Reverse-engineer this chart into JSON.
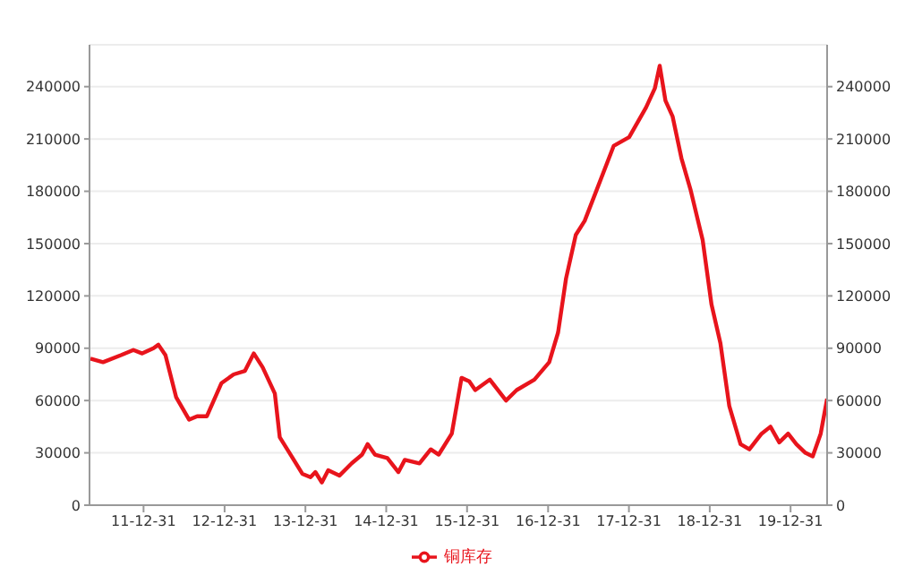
{
  "chart_data": {
    "type": "line",
    "x": [
      "2011-05-05",
      "2011-07-01",
      "2011-09-20",
      "2011-11-15",
      "2011-12-25",
      "2012-02-14",
      "2012-03-07",
      "2012-04-08",
      "2012-05-26",
      "2012-07-24",
      "2012-08-29",
      "2012-10-12",
      "2012-12-17",
      "2013-02-10",
      "2013-04-02",
      "2013-05-12",
      "2013-06-21",
      "2013-08-15",
      "2013-09-06",
      "2013-10-20",
      "2013-12-17",
      "2014-01-23",
      "2014-02-14",
      "2014-03-15",
      "2014-04-13",
      "2014-06-03",
      "2014-07-28",
      "2014-09-13",
      "2014-10-08",
      "2014-11-10",
      "2015-01-05",
      "2015-02-24",
      "2015-03-25",
      "2015-05-30",
      "2015-07-20",
      "2015-08-25",
      "2015-10-23",
      "2015-12-06",
      "2016-01-10",
      "2016-02-06",
      "2016-04-12",
      "2016-06-24",
      "2016-08-11",
      "2016-10-30",
      "2017-01-05",
      "2017-02-14",
      "2017-03-22",
      "2017-05-05",
      "2017-06-14",
      "2017-08-08",
      "2017-10-23",
      "2018-01-01",
      "2018-03-18",
      "2018-04-27",
      "2018-05-19",
      "2018-06-14",
      "2018-07-16",
      "2018-08-25",
      "2018-10-05",
      "2018-11-29",
      "2019-01-08",
      "2019-02-17",
      "2019-03-29",
      "2019-05-19",
      "2019-06-28",
      "2019-08-22",
      "2019-10-01",
      "2019-11-10",
      "2019-12-20",
      "2020-01-26",
      "2020-03-07",
      "2020-04-09",
      "2020-05-15",
      "2020-06-13"
    ],
    "series": [
      {
        "name": "铜库存",
        "color": "#e8141c",
        "values": [
          84000,
          82000,
          86000,
          89000,
          87000,
          90000,
          92000,
          86000,
          62000,
          49000,
          51000,
          51000,
          70000,
          75000,
          77000,
          87000,
          79000,
          64000,
          39000,
          30000,
          18000,
          16000,
          19000,
          13000,
          20000,
          17000,
          24000,
          29000,
          35000,
          29000,
          27000,
          19000,
          26000,
          24000,
          32000,
          29000,
          41000,
          73000,
          71000,
          66000,
          72000,
          60000,
          66000,
          72000,
          82000,
          99000,
          130000,
          155000,
          163000,
          181000,
          206000,
          211000,
          228000,
          239000,
          252000,
          232000,
          223000,
          199000,
          181000,
          152000,
          115000,
          93000,
          57000,
          35000,
          32000,
          41000,
          45000,
          36000,
          41000,
          35000,
          30000,
          28000,
          41000,
          61000
        ]
      }
    ],
    "xlim": [
      "2011-05-01",
      "2020-06-13"
    ],
    "xticks": [
      {
        "value": "2011-12-31",
        "label": "11-12-31"
      },
      {
        "value": "2012-12-31",
        "label": "12-12-31"
      },
      {
        "value": "2013-12-31",
        "label": "13-12-31"
      },
      {
        "value": "2014-12-31",
        "label": "14-12-31"
      },
      {
        "value": "2015-12-31",
        "label": "15-12-31"
      },
      {
        "value": "2016-12-31",
        "label": "16-12-31"
      },
      {
        "value": "2017-12-31",
        "label": "17-12-31"
      },
      {
        "value": "2018-12-31",
        "label": "18-12-31"
      },
      {
        "value": "2019-12-31",
        "label": "19-12-31"
      }
    ],
    "ylim": [
      0,
      264000
    ],
    "yticks": [
      0,
      30000,
      60000,
      90000,
      120000,
      150000,
      180000,
      210000,
      240000
    ],
    "y2lim": [
      0,
      264000
    ],
    "y2ticks": [
      0,
      30000,
      60000,
      90000,
      120000,
      150000,
      180000,
      210000,
      240000
    ],
    "grid": "y",
    "legend": "bottom",
    "line_style": "solid"
  }
}
